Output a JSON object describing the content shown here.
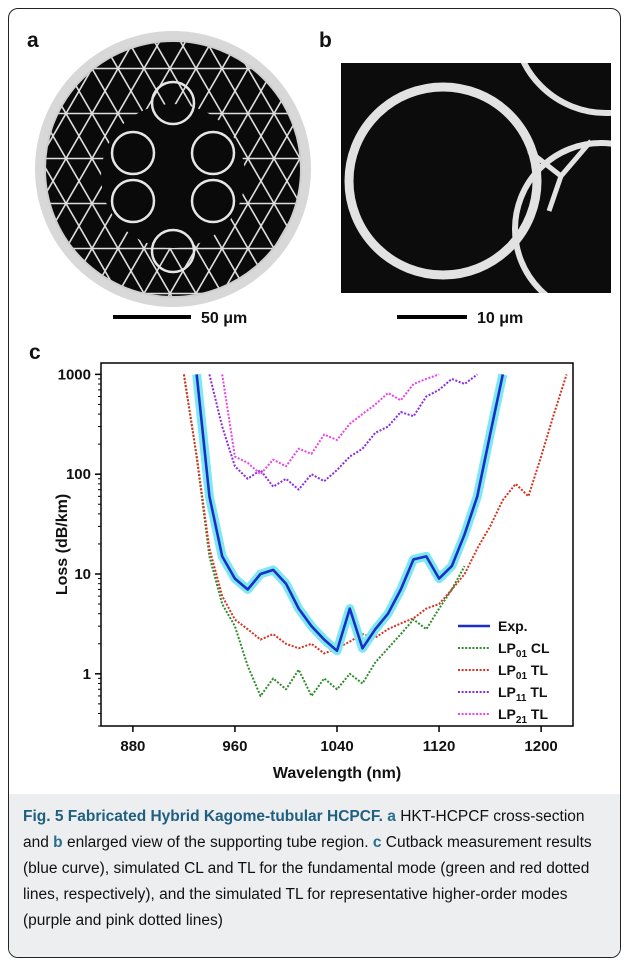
{
  "panel_labels": [
    "a",
    "b",
    "c"
  ],
  "scale_bars": [
    "50 μm",
    "10 μm"
  ],
  "chart_data": {
    "type": "line",
    "log_y": true,
    "x_label": "Wavelength (nm)",
    "y_label": "Loss (dB/km)",
    "x": [
      920,
      930,
      940,
      950,
      960,
      970,
      980,
      990,
      1000,
      1010,
      1020,
      1030,
      1040,
      1050,
      1060,
      1070,
      1080,
      1090,
      1100,
      1110,
      1120,
      1130,
      1140,
      1150,
      1160,
      1170,
      1180,
      1190,
      1200,
      1210,
      1220
    ],
    "xlim": [
      855,
      1225
    ],
    "xticks": [
      880,
      960,
      1040,
      1120,
      1200
    ],
    "ylim": [
      0.3,
      1300
    ],
    "yticks": [
      1,
      10,
      100,
      1000
    ],
    "legend": "lower-right",
    "series": [
      {
        "name": "Exp.",
        "color": "#1a2fc8",
        "halo": "#7ee8f0",
        "style": "solid",
        "values": [
          null,
          1000,
          60,
          15,
          9,
          7,
          10,
          11,
          8,
          4.5,
          3,
          2.2,
          1.7,
          4.5,
          1.8,
          2.8,
          4,
          7,
          14,
          15,
          9,
          12,
          25,
          60,
          250,
          1000,
          null,
          null,
          null,
          null,
          null
        ]
      },
      {
        "name": "LP01 CL",
        "color": "#2e8b2e",
        "style": "dotted",
        "values": [
          1000,
          150,
          15,
          5,
          3,
          1.2,
          0.6,
          0.9,
          0.7,
          1.1,
          0.6,
          0.9,
          0.7,
          1.0,
          0.8,
          1.3,
          1.8,
          2.5,
          3.5,
          2.8,
          4.5,
          7,
          12,
          null,
          null,
          null,
          null,
          null,
          null,
          null,
          null
        ]
      },
      {
        "name": "LP01 TL",
        "color": "#d8321e",
        "style": "dotted",
        "values": [
          1000,
          150,
          18,
          6,
          3.5,
          2.8,
          2.2,
          2.5,
          2,
          1.8,
          2,
          1.6,
          1.8,
          2.1,
          2.5,
          2.3,
          2.8,
          3.2,
          3.6,
          4.5,
          5,
          7,
          10,
          18,
          30,
          55,
          80,
          60,
          150,
          400,
          1000
        ]
      },
      {
        "name": "LP11 TL",
        "color": "#8a2be2",
        "style": "dotted",
        "values": [
          null,
          null,
          1000,
          300,
          120,
          90,
          110,
          75,
          90,
          70,
          100,
          85,
          110,
          150,
          180,
          260,
          300,
          420,
          380,
          600,
          700,
          900,
          800,
          1000,
          null,
          null,
          null,
          null,
          null,
          null,
          null
        ]
      },
      {
        "name": "LP21 TL",
        "color": "#e844e8",
        "style": "dotted",
        "values": [
          null,
          null,
          null,
          1000,
          150,
          130,
          100,
          140,
          120,
          180,
          160,
          250,
          220,
          320,
          400,
          500,
          650,
          550,
          800,
          900,
          1000,
          null,
          null,
          null,
          null,
          null,
          null,
          null,
          null,
          null,
          null
        ]
      }
    ]
  },
  "caption": [
    {
      "text": "Fig. 5 Fabricated Hybrid Kagome-tubular HCPCF. ",
      "bold": true
    },
    {
      "text": "a",
      "bold": true
    },
    {
      "text": " HKT-HCPCF cross-section and ",
      "bold": false
    },
    {
      "text": "b",
      "bold": true
    },
    {
      "text": " enlarged view of the supporting tube region. ",
      "bold": false
    },
    {
      "text": "c",
      "bold": true
    },
    {
      "text": " Cutback measurement results (blue curve), simulated CL and TL for the fundamental mode (green and red dotted lines, respectively), and the simulated TL for representative higher-order modes (purple and pink dotted lines)",
      "bold": false
    }
  ]
}
